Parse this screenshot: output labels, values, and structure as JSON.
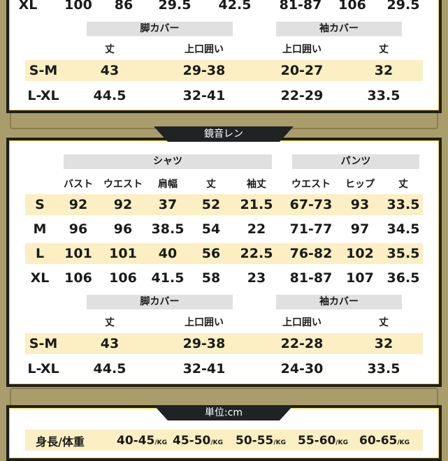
{
  "top": {
    "xl_row": [
      "XL",
      "100",
      "86",
      "29.5",
      "42.5",
      "81-87",
      "106",
      "29.5"
    ],
    "covers": {
      "leg_title": "脚カバー",
      "sleeve_title": "袖カバー",
      "headers": [
        "丈",
        "上口囲い",
        "上口囲い",
        "丈"
      ],
      "rows": [
        [
          "S-M",
          "43",
          "29-38",
          "20-27",
          "32"
        ],
        [
          "L-XL",
          "44.5",
          "32-41",
          "22-29",
          "33.5"
        ]
      ]
    }
  },
  "middle": {
    "tab": "鏡音レン",
    "shirt_title": "シャツ",
    "pants_title": "パンツ",
    "headers": [
      "バスト",
      "ウエスト",
      "肩幅",
      "丈",
      "袖丈",
      "ウエスト",
      "ヒップ",
      "丈"
    ],
    "rows": [
      [
        "S",
        "92",
        "92",
        "37",
        "52",
        "21.5",
        "67-73",
        "93",
        "33.5"
      ],
      [
        "M",
        "96",
        "96",
        "38.5",
        "54",
        "22",
        "71-77",
        "97",
        "34.5"
      ],
      [
        "L",
        "101",
        "101",
        "40",
        "56",
        "22.5",
        "76-82",
        "102",
        "35.5"
      ],
      [
        "XL",
        "106",
        "106",
        "41.5",
        "58",
        "23",
        "81-87",
        "107",
        "36.5"
      ]
    ],
    "covers": {
      "leg_title": "脚カバー",
      "sleeve_title": "袖カバー",
      "headers": [
        "丈",
        "上口囲い",
        "上口囲い",
        "丈"
      ],
      "rows": [
        [
          "S-M",
          "43",
          "29-38",
          "22-28",
          "32"
        ],
        [
          "L-XL",
          "44.5",
          "32-41",
          "24-30",
          "33.5"
        ]
      ]
    }
  },
  "bottom": {
    "tab": "単位:cm",
    "label": "身長/体重",
    "ranges": [
      "40-45",
      "45-50",
      "50-55",
      "55-60",
      "60-65"
    ],
    "unit": "/KG"
  },
  "colors": {
    "background": "#a99d6b",
    "border_yellow": "#f2cf2b",
    "band": "#fbefc3",
    "tab": "#1f2326"
  }
}
